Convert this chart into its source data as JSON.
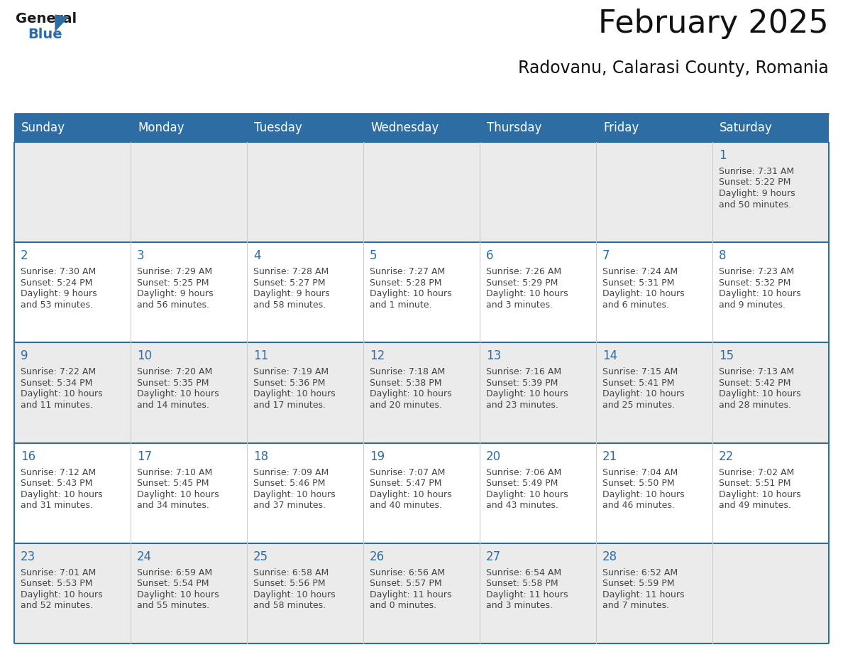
{
  "title": "February 2025",
  "subtitle": "Radovanu, Calarasi County, Romania",
  "header_bg": "#2E6DA4",
  "header_text_color": "#FFFFFF",
  "row_bg_odd": "#EBEBEB",
  "row_bg_even": "#FFFFFF",
  "day_number_color": "#2E6DA4",
  "info_text_color": "#444444",
  "border_color": "#2E6DA4",
  "grid_line_color": "#BBBBBB",
  "days_of_week": [
    "Sunday",
    "Monday",
    "Tuesday",
    "Wednesday",
    "Thursday",
    "Friday",
    "Saturday"
  ],
  "week_rows": [
    [
      {
        "day": "",
        "sunrise": "",
        "sunset": "",
        "daylight_line1": "",
        "daylight_line2": ""
      },
      {
        "day": "",
        "sunrise": "",
        "sunset": "",
        "daylight_line1": "",
        "daylight_line2": ""
      },
      {
        "day": "",
        "sunrise": "",
        "sunset": "",
        "daylight_line1": "",
        "daylight_line2": ""
      },
      {
        "day": "",
        "sunrise": "",
        "sunset": "",
        "daylight_line1": "",
        "daylight_line2": ""
      },
      {
        "day": "",
        "sunrise": "",
        "sunset": "",
        "daylight_line1": "",
        "daylight_line2": ""
      },
      {
        "day": "",
        "sunrise": "",
        "sunset": "",
        "daylight_line1": "",
        "daylight_line2": ""
      },
      {
        "day": "1",
        "sunrise": "Sunrise: 7:31 AM",
        "sunset": "Sunset: 5:22 PM",
        "daylight_line1": "Daylight: 9 hours",
        "daylight_line2": "and 50 minutes."
      }
    ],
    [
      {
        "day": "2",
        "sunrise": "Sunrise: 7:30 AM",
        "sunset": "Sunset: 5:24 PM",
        "daylight_line1": "Daylight: 9 hours",
        "daylight_line2": "and 53 minutes."
      },
      {
        "day": "3",
        "sunrise": "Sunrise: 7:29 AM",
        "sunset": "Sunset: 5:25 PM",
        "daylight_line1": "Daylight: 9 hours",
        "daylight_line2": "and 56 minutes."
      },
      {
        "day": "4",
        "sunrise": "Sunrise: 7:28 AM",
        "sunset": "Sunset: 5:27 PM",
        "daylight_line1": "Daylight: 9 hours",
        "daylight_line2": "and 58 minutes."
      },
      {
        "day": "5",
        "sunrise": "Sunrise: 7:27 AM",
        "sunset": "Sunset: 5:28 PM",
        "daylight_line1": "Daylight: 10 hours",
        "daylight_line2": "and 1 minute."
      },
      {
        "day": "6",
        "sunrise": "Sunrise: 7:26 AM",
        "sunset": "Sunset: 5:29 PM",
        "daylight_line1": "Daylight: 10 hours",
        "daylight_line2": "and 3 minutes."
      },
      {
        "day": "7",
        "sunrise": "Sunrise: 7:24 AM",
        "sunset": "Sunset: 5:31 PM",
        "daylight_line1": "Daylight: 10 hours",
        "daylight_line2": "and 6 minutes."
      },
      {
        "day": "8",
        "sunrise": "Sunrise: 7:23 AM",
        "sunset": "Sunset: 5:32 PM",
        "daylight_line1": "Daylight: 10 hours",
        "daylight_line2": "and 9 minutes."
      }
    ],
    [
      {
        "day": "9",
        "sunrise": "Sunrise: 7:22 AM",
        "sunset": "Sunset: 5:34 PM",
        "daylight_line1": "Daylight: 10 hours",
        "daylight_line2": "and 11 minutes."
      },
      {
        "day": "10",
        "sunrise": "Sunrise: 7:20 AM",
        "sunset": "Sunset: 5:35 PM",
        "daylight_line1": "Daylight: 10 hours",
        "daylight_line2": "and 14 minutes."
      },
      {
        "day": "11",
        "sunrise": "Sunrise: 7:19 AM",
        "sunset": "Sunset: 5:36 PM",
        "daylight_line1": "Daylight: 10 hours",
        "daylight_line2": "and 17 minutes."
      },
      {
        "day": "12",
        "sunrise": "Sunrise: 7:18 AM",
        "sunset": "Sunset: 5:38 PM",
        "daylight_line1": "Daylight: 10 hours",
        "daylight_line2": "and 20 minutes."
      },
      {
        "day": "13",
        "sunrise": "Sunrise: 7:16 AM",
        "sunset": "Sunset: 5:39 PM",
        "daylight_line1": "Daylight: 10 hours",
        "daylight_line2": "and 23 minutes."
      },
      {
        "day": "14",
        "sunrise": "Sunrise: 7:15 AM",
        "sunset": "Sunset: 5:41 PM",
        "daylight_line1": "Daylight: 10 hours",
        "daylight_line2": "and 25 minutes."
      },
      {
        "day": "15",
        "sunrise": "Sunrise: 7:13 AM",
        "sunset": "Sunset: 5:42 PM",
        "daylight_line1": "Daylight: 10 hours",
        "daylight_line2": "and 28 minutes."
      }
    ],
    [
      {
        "day": "16",
        "sunrise": "Sunrise: 7:12 AM",
        "sunset": "Sunset: 5:43 PM",
        "daylight_line1": "Daylight: 10 hours",
        "daylight_line2": "and 31 minutes."
      },
      {
        "day": "17",
        "sunrise": "Sunrise: 7:10 AM",
        "sunset": "Sunset: 5:45 PM",
        "daylight_line1": "Daylight: 10 hours",
        "daylight_line2": "and 34 minutes."
      },
      {
        "day": "18",
        "sunrise": "Sunrise: 7:09 AM",
        "sunset": "Sunset: 5:46 PM",
        "daylight_line1": "Daylight: 10 hours",
        "daylight_line2": "and 37 minutes."
      },
      {
        "day": "19",
        "sunrise": "Sunrise: 7:07 AM",
        "sunset": "Sunset: 5:47 PM",
        "daylight_line1": "Daylight: 10 hours",
        "daylight_line2": "and 40 minutes."
      },
      {
        "day": "20",
        "sunrise": "Sunrise: 7:06 AM",
        "sunset": "Sunset: 5:49 PM",
        "daylight_line1": "Daylight: 10 hours",
        "daylight_line2": "and 43 minutes."
      },
      {
        "day": "21",
        "sunrise": "Sunrise: 7:04 AM",
        "sunset": "Sunset: 5:50 PM",
        "daylight_line1": "Daylight: 10 hours",
        "daylight_line2": "and 46 minutes."
      },
      {
        "day": "22",
        "sunrise": "Sunrise: 7:02 AM",
        "sunset": "Sunset: 5:51 PM",
        "daylight_line1": "Daylight: 10 hours",
        "daylight_line2": "and 49 minutes."
      }
    ],
    [
      {
        "day": "23",
        "sunrise": "Sunrise: 7:01 AM",
        "sunset": "Sunset: 5:53 PM",
        "daylight_line1": "Daylight: 10 hours",
        "daylight_line2": "and 52 minutes."
      },
      {
        "day": "24",
        "sunrise": "Sunrise: 6:59 AM",
        "sunset": "Sunset: 5:54 PM",
        "daylight_line1": "Daylight: 10 hours",
        "daylight_line2": "and 55 minutes."
      },
      {
        "day": "25",
        "sunrise": "Sunrise: 6:58 AM",
        "sunset": "Sunset: 5:56 PM",
        "daylight_line1": "Daylight: 10 hours",
        "daylight_line2": "and 58 minutes."
      },
      {
        "day": "26",
        "sunrise": "Sunrise: 6:56 AM",
        "sunset": "Sunset: 5:57 PM",
        "daylight_line1": "Daylight: 11 hours",
        "daylight_line2": "and 0 minutes."
      },
      {
        "day": "27",
        "sunrise": "Sunrise: 6:54 AM",
        "sunset": "Sunset: 5:58 PM",
        "daylight_line1": "Daylight: 11 hours",
        "daylight_line2": "and 3 minutes."
      },
      {
        "day": "28",
        "sunrise": "Sunrise: 6:52 AM",
        "sunset": "Sunset: 5:59 PM",
        "daylight_line1": "Daylight: 11 hours",
        "daylight_line2": "and 7 minutes."
      },
      {
        "day": "",
        "sunrise": "",
        "sunset": "",
        "daylight_line1": "",
        "daylight_line2": ""
      }
    ]
  ]
}
